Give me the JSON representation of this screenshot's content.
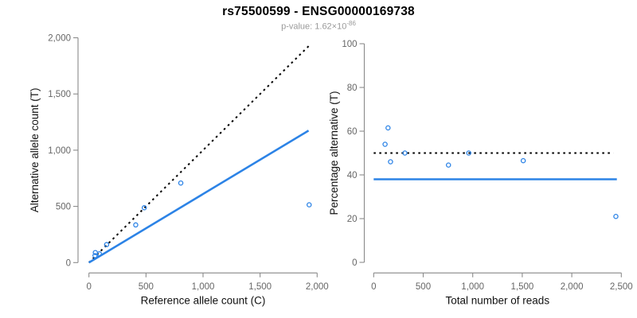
{
  "header": {
    "title": "rs75500599 - ENSG00000169738",
    "subtitle_prefix": "p-value: 1.62×10",
    "subtitle_exponent": "-86"
  },
  "colors": {
    "accent_blue": "#2c83e6",
    "dashed_black": "#000000",
    "axis_gray": "#8a8a8a",
    "tick_label_gray": "#666666",
    "axis_title_color": "#111111",
    "title_color": "#000000",
    "subtitle_gray": "#9a9a9a"
  },
  "chart_data": [
    {
      "panel": "left",
      "type": "scatter",
      "xlabel": "Reference allele count (C)",
      "ylabel": "Alternative allele count (T)",
      "xlim": [
        0,
        2000
      ],
      "ylim": [
        0,
        2000
      ],
      "x_tick_values": [
        0,
        500,
        1000,
        1500,
        2000
      ],
      "x_tick_labels": [
        "0",
        "500",
        "1,000",
        "1,500",
        "2,000"
      ],
      "y_tick_values": [
        0,
        500,
        1000,
        1500,
        2000
      ],
      "y_tick_labels": [
        "0",
        "500",
        "1,000",
        "1,500",
        "2,000"
      ],
      "grid": false,
      "legend": null,
      "points": [
        [
          53,
          62
        ],
        [
          56,
          89
        ],
        [
          92,
          78
        ],
        [
          155,
          160
        ],
        [
          410,
          335
        ],
        [
          485,
          488
        ],
        [
          805,
          708
        ],
        [
          1930,
          514
        ]
      ],
      "lines": [
        {
          "name": "identity-line",
          "style": "dashed",
          "color": "black",
          "from": [
            0,
            0
          ],
          "to": [
            1930,
            1930
          ]
        },
        {
          "name": "fit-line",
          "style": "solid",
          "color": "blue",
          "from": [
            0,
            0
          ],
          "to": [
            1925,
            1174
          ]
        }
      ]
    },
    {
      "panel": "right",
      "type": "scatter",
      "xlabel": "Total number of reads",
      "ylabel": "Percentage alternative (T)",
      "xlim": [
        0,
        2500
      ],
      "ylim": [
        0,
        100
      ],
      "x_tick_values": [
        0,
        500,
        1000,
        1500,
        2000,
        2500
      ],
      "x_tick_labels": [
        "0",
        "500",
        "1,000",
        "1,500",
        "2,000",
        "2,500"
      ],
      "y_tick_values": [
        0,
        20,
        40,
        60,
        80,
        100
      ],
      "y_tick_labels": [
        "0",
        "20",
        "40",
        "60",
        "80",
        "100"
      ],
      "grid": false,
      "legend": null,
      "points": [
        [
          115,
          54
        ],
        [
          145,
          61.5
        ],
        [
          170,
          46
        ],
        [
          315,
          50
        ],
        [
          755,
          44.5
        ],
        [
          960,
          50
        ],
        [
          1510,
          46.5
        ],
        [
          2445,
          21
        ]
      ],
      "lines": [
        {
          "name": "expected-50pct-line",
          "style": "dashed",
          "color": "black",
          "from": [
            0,
            50
          ],
          "to": [
            2420,
            50
          ]
        },
        {
          "name": "observed-pct-line",
          "style": "solid",
          "color": "blue",
          "from": [
            0,
            38
          ],
          "to": [
            2455,
            38
          ]
        }
      ]
    }
  ]
}
